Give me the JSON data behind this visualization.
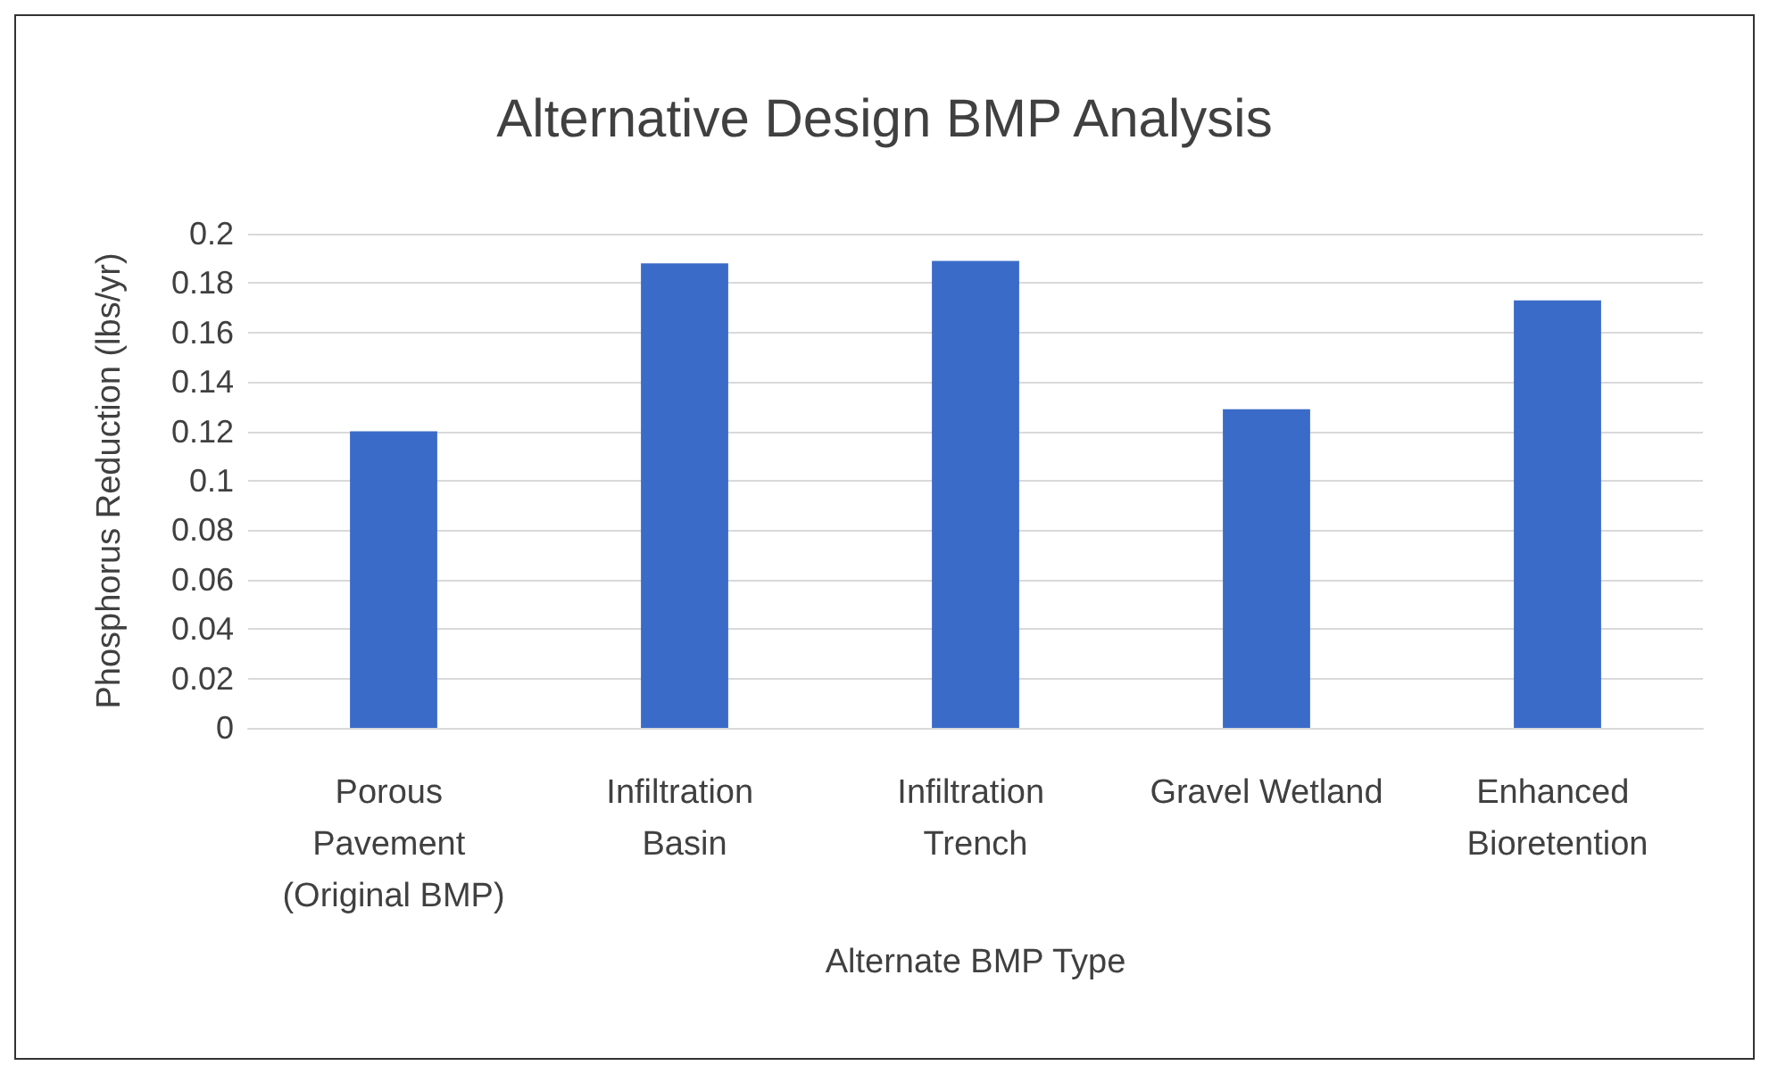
{
  "chart_data": {
    "type": "bar",
    "title": "Alternative Design BMP Analysis",
    "xlabel": "Alternate BMP Type",
    "ylabel": "Phosphorus Reduction (lbs/yr)",
    "categories": [
      "Porous Pavement (Original BMP)",
      "Infiltration Basin",
      "Infiltration Trench",
      "Gravel Wetland",
      "Enhanced Bioretention"
    ],
    "values": [
      0.12,
      0.188,
      0.189,
      0.129,
      0.173
    ],
    "color": "#3b6bc8",
    "ylim": [
      0,
      0.2
    ],
    "yticks": [
      0,
      0.02,
      0.04,
      0.06,
      0.08,
      0.1,
      0.12,
      0.14,
      0.16,
      0.18,
      0.2
    ],
    "grid": "y"
  }
}
